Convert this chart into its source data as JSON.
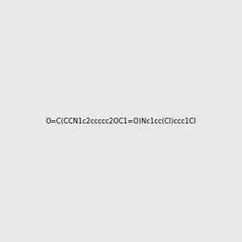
{
  "smiles": "O=C(CCN1c2ccccc2OC1=O)Nc1cc(Cl)ccc1Cl",
  "img_size": [
    300,
    300
  ],
  "background_color": "#e8e8e8",
  "title": "",
  "atom_colors": {
    "N": [
      0,
      0,
      200
    ],
    "O": [
      200,
      0,
      0
    ],
    "Cl": [
      0,
      180,
      0
    ]
  }
}
